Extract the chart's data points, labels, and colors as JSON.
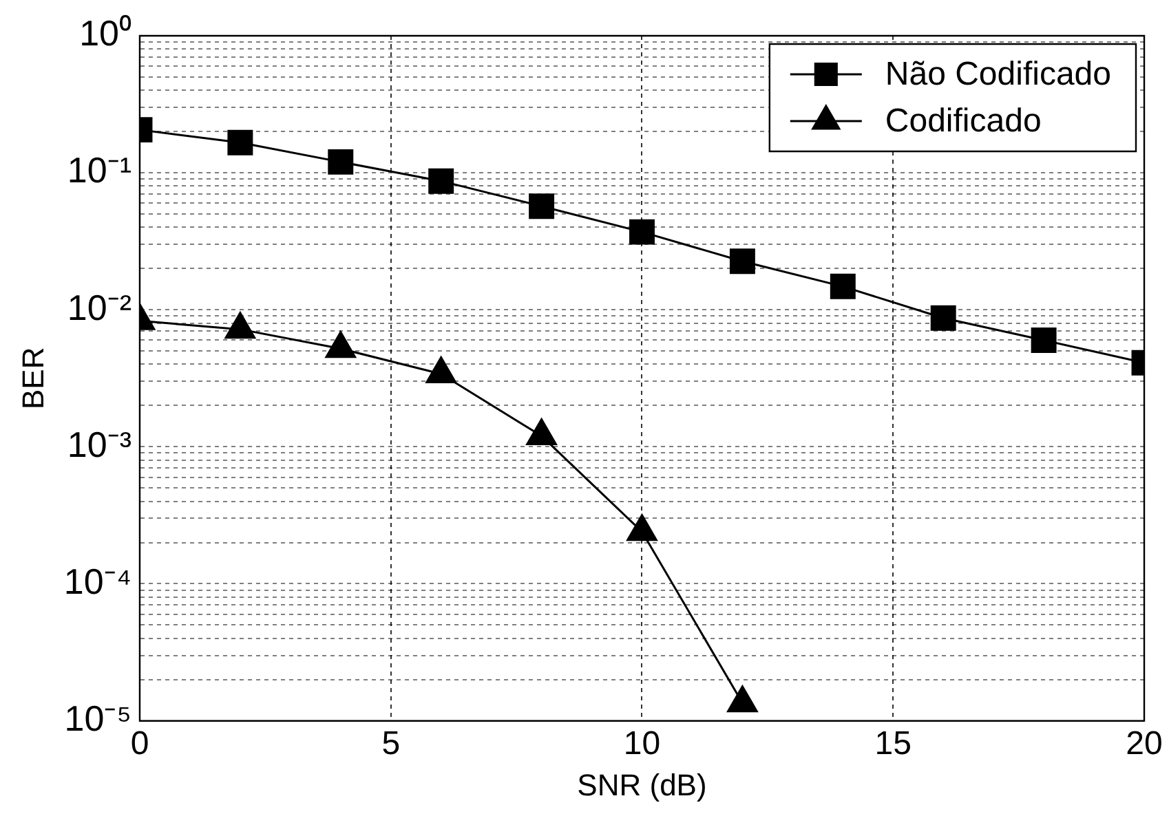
{
  "chart_data": {
    "type": "line",
    "xlabel": "SNR (dB)",
    "ylabel": "BER",
    "x": [
      0,
      2,
      4,
      6,
      8,
      10,
      12,
      14,
      16,
      18,
      20
    ],
    "series": [
      {
        "name": "Não Codificado",
        "color": "#000000",
        "marker": "square",
        "values": [
          0.206,
          0.166,
          0.12,
          0.087,
          0.057,
          0.037,
          0.0226,
          0.0148,
          0.0087,
          0.006,
          0.0041
        ]
      },
      {
        "name": "Codificado",
        "color": "#000000",
        "marker": "triangle",
        "values": [
          0.0083,
          0.0072,
          0.0052,
          0.0034,
          0.0012,
          0.00024,
          1.35e-05,
          null,
          null,
          null,
          null
        ]
      }
    ],
    "log": "y",
    "xlim": [
      0,
      20
    ],
    "xticks": [
      0,
      5,
      10,
      15,
      20
    ],
    "ylim": [
      1e-05,
      1
    ],
    "yticks": [
      {
        "value": 1e-05,
        "label": "10⁻⁵"
      },
      {
        "value": 2e-05,
        "label": null
      },
      {
        "value": 3e-05,
        "label": null
      },
      {
        "value": 4e-05,
        "label": null
      },
      {
        "value": 5e-05,
        "label": null
      },
      {
        "value": 6e-05,
        "label": null
      },
      {
        "value": 7e-05,
        "label": null
      },
      {
        "value": 8e-05,
        "label": null
      },
      {
        "value": 9e-05,
        "label": null
      },
      {
        "value": 0.0001,
        "label": "10⁻⁴"
      },
      {
        "value": 0.0002,
        "label": null
      },
      {
        "value": 0.0003,
        "label": null
      },
      {
        "value": 0.0004,
        "label": null
      },
      {
        "value": 0.0005,
        "label": null
      },
      {
        "value": 0.0006,
        "label": null
      },
      {
        "value": 0.0007,
        "label": null
      },
      {
        "value": 0.0008,
        "label": null
      },
      {
        "value": 0.0009,
        "label": null
      },
      {
        "value": 0.001,
        "label": "10⁻³"
      },
      {
        "value": 0.002,
        "label": null
      },
      {
        "value": 0.003,
        "label": null
      },
      {
        "value": 0.004,
        "label": null
      },
      {
        "value": 0.005,
        "label": null
      },
      {
        "value": 0.006,
        "label": null
      },
      {
        "value": 0.007,
        "label": null
      },
      {
        "value": 0.008,
        "label": null
      },
      {
        "value": 0.009,
        "label": null
      },
      {
        "value": 0.01,
        "label": "10⁻²"
      },
      {
        "value": 0.02,
        "label": null
      },
      {
        "value": 0.03,
        "label": null
      },
      {
        "value": 0.04,
        "label": null
      },
      {
        "value": 0.05,
        "label": null
      },
      {
        "value": 0.06,
        "label": null
      },
      {
        "value": 0.07,
        "label": null
      },
      {
        "value": 0.08,
        "label": null
      },
      {
        "value": 0.09,
        "label": null
      },
      {
        "value": 0.1,
        "label": "10⁻¹"
      },
      {
        "value": 0.2,
        "label": null
      },
      {
        "value": 0.3,
        "label": null
      },
      {
        "value": 0.4,
        "label": null
      },
      {
        "value": 0.5,
        "label": null
      },
      {
        "value": 0.6,
        "label": null
      },
      {
        "value": 0.7,
        "label": null
      },
      {
        "value": 0.8,
        "label": null
      },
      {
        "value": 0.9,
        "label": null
      },
      {
        "value": 1,
        "label": "10⁰"
      }
    ],
    "grid": true,
    "legend": "top right",
    "line_style": "solid"
  }
}
